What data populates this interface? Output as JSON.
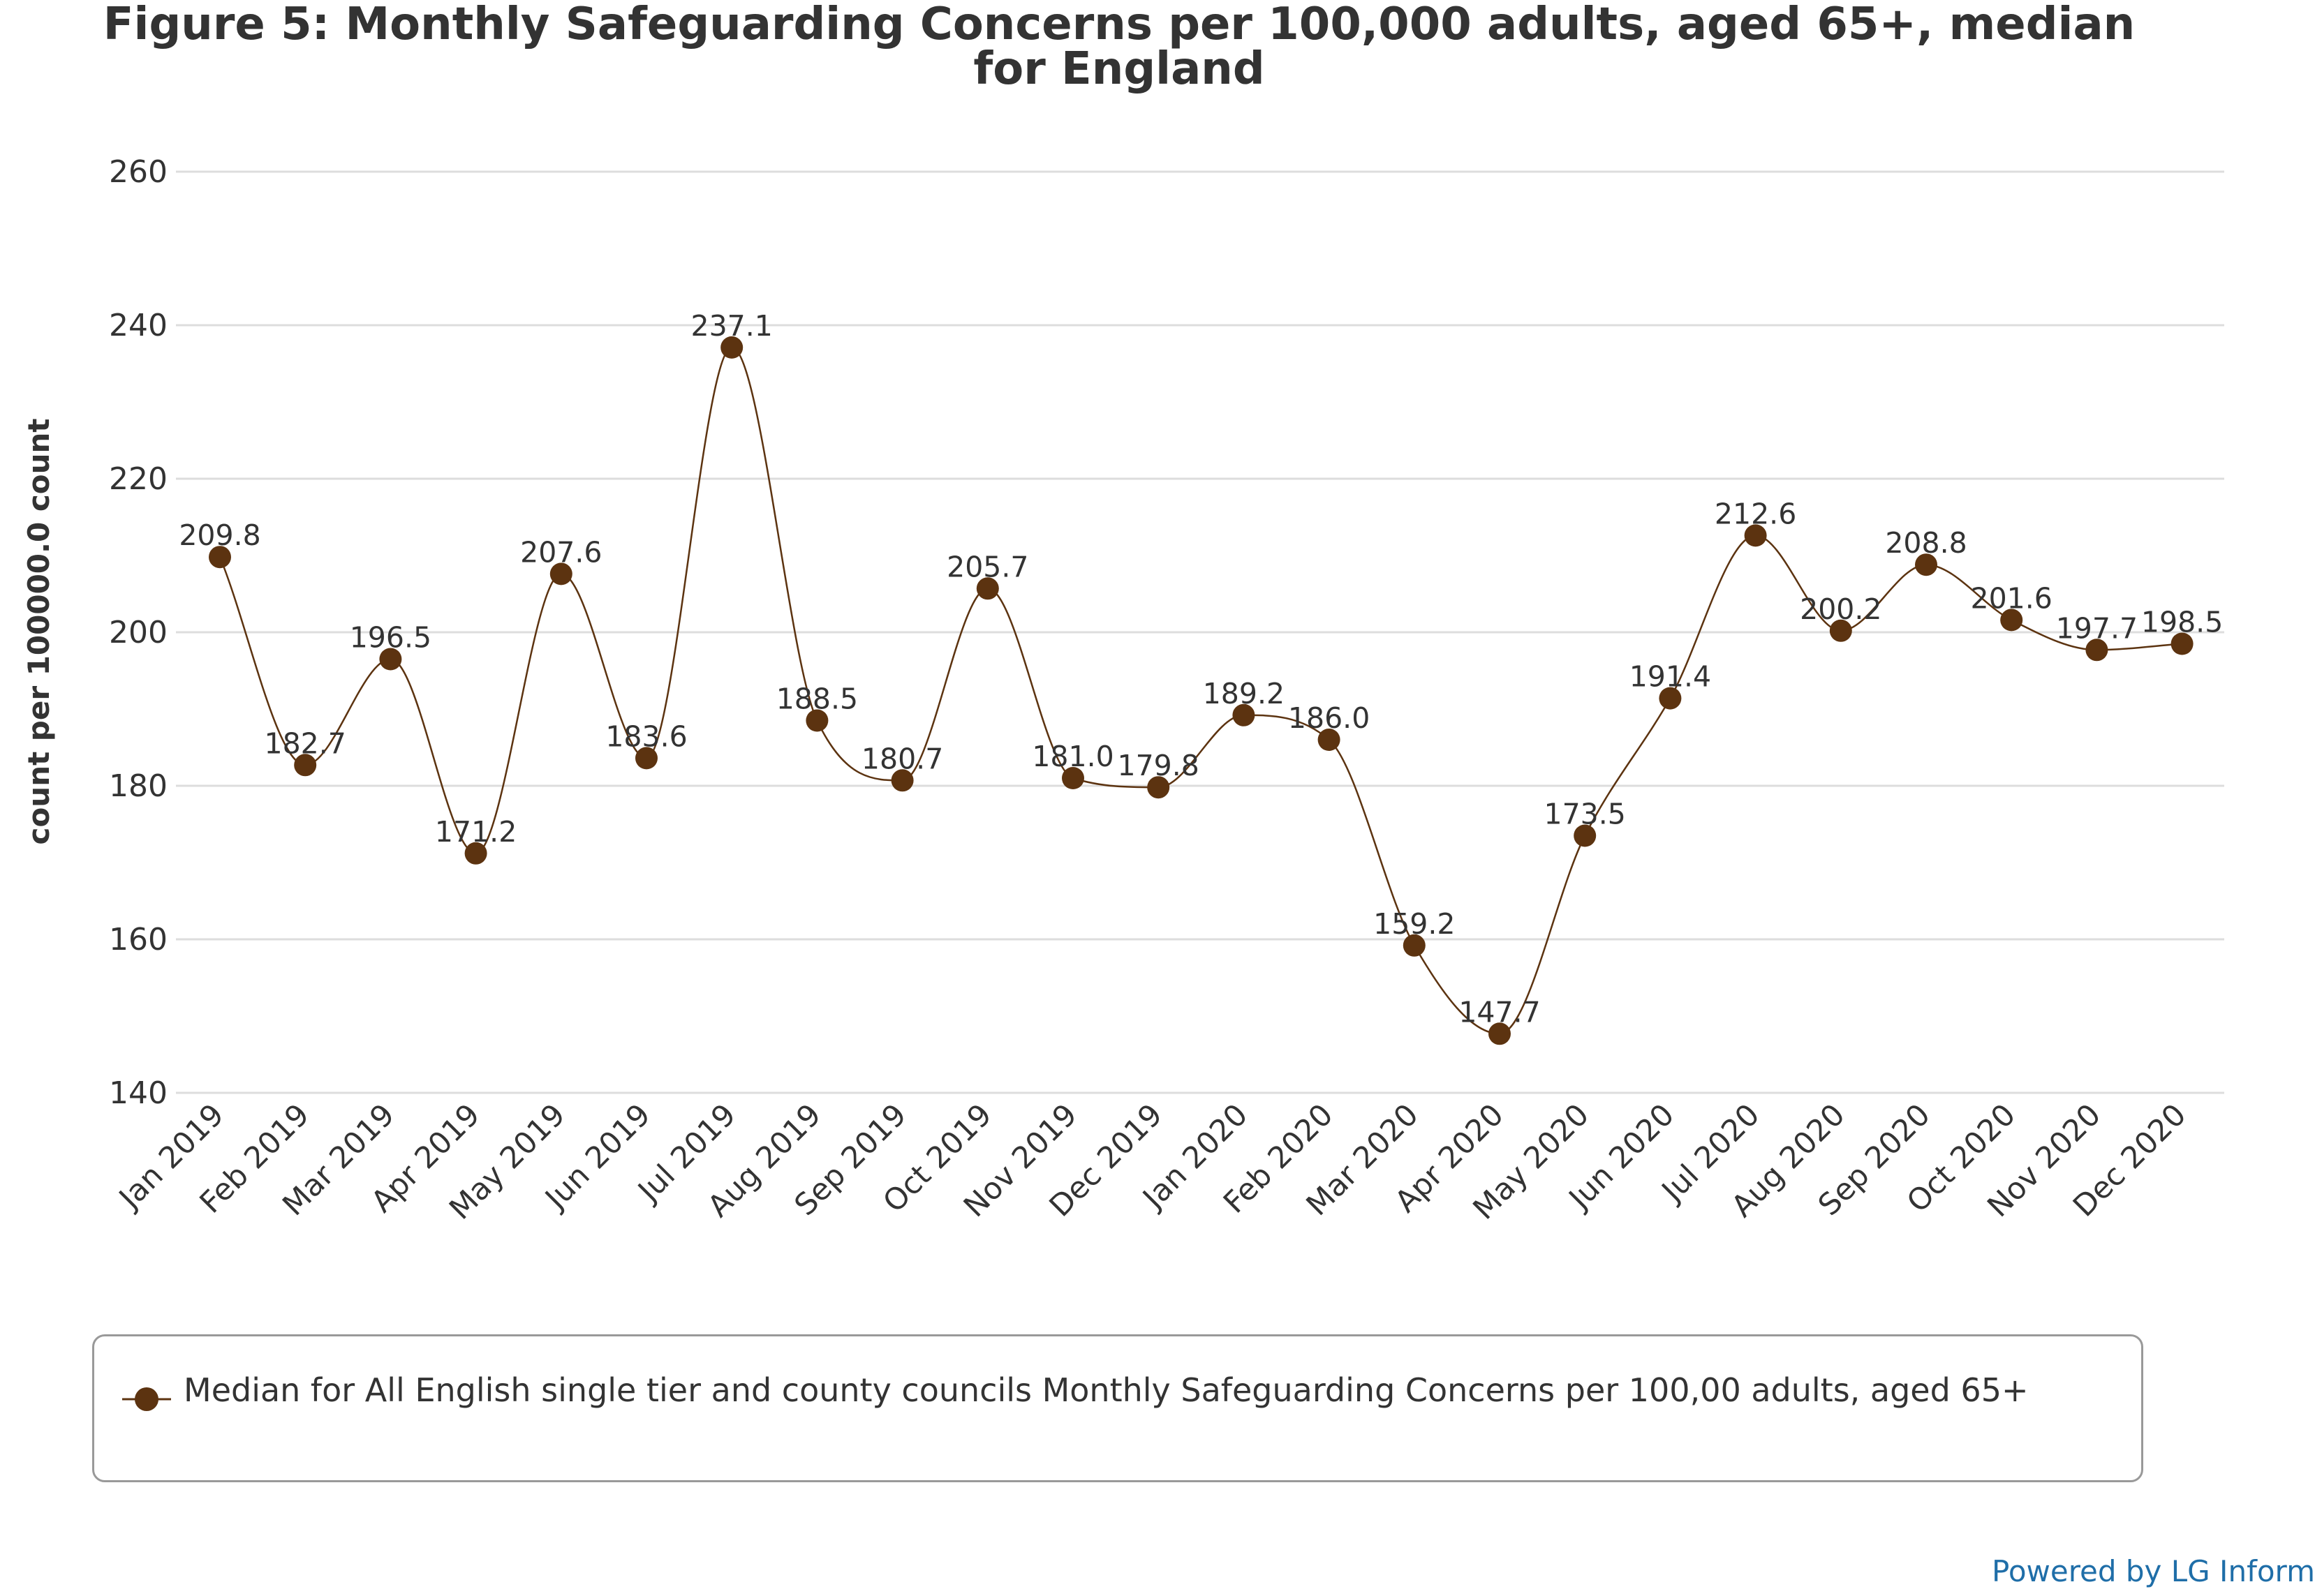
{
  "chart_data": {
    "type": "line",
    "title_line1": "Figure 5: Monthly Safeguarding Concerns per 100,000 adults, aged 65+, median",
    "title_line2": "for England",
    "ylabel": "count per 100000.0 count",
    "xlabel": "",
    "ylim": [
      140,
      260
    ],
    "yticks": [
      140,
      160,
      180,
      200,
      220,
      240,
      260
    ],
    "grid": true,
    "legend_position": "bottom",
    "categories": [
      "Jan 2019",
      "Feb 2019",
      "Mar 2019",
      "Apr 2019",
      "May 2019",
      "Jun 2019",
      "Jul 2019",
      "Aug 2019",
      "Sep 2019",
      "Oct 2019",
      "Nov 2019",
      "Dec 2019",
      "Jan 2020",
      "Feb 2020",
      "Mar 2020",
      "Apr 2020",
      "May 2020",
      "Jun 2020",
      "Jul 2020",
      "Aug 2020",
      "Sep 2020",
      "Oct 2020",
      "Nov 2020",
      "Dec 2020"
    ],
    "series": [
      {
        "name": "Median for All English single tier and county councils Monthly Safeguarding Concerns per 100,00 adults, aged 65+",
        "color": "#5c3310",
        "values": [
          209.8,
          182.7,
          196.5,
          171.2,
          207.6,
          183.6,
          237.1,
          188.5,
          180.7,
          205.7,
          181.0,
          179.8,
          189.2,
          186.0,
          159.2,
          147.7,
          173.5,
          191.4,
          212.6,
          200.2,
          208.8,
          201.6,
          197.7,
          198.5
        ],
        "labels": [
          "209.8",
          "182.7",
          "196.5",
          "171.2",
          "207.6",
          "183.6",
          "237.1",
          "188.5",
          "180.7",
          "205.7",
          "181.0",
          "179.8",
          "189.2",
          "186.0",
          "159.2",
          "147.7",
          "173.5",
          "191.4",
          "212.6",
          "200.2",
          "208.8",
          "201.6",
          "197.7",
          "198.5"
        ]
      }
    ]
  },
  "legend": {
    "text": "Median for All English single tier and county councils Monthly Safeguarding Concerns per 100,00 adults, aged 65+"
  },
  "footer": {
    "credit": "Powered by LG Inform"
  },
  "colors": {
    "series": "#5c3310",
    "grid": "#dddddd",
    "text": "#333333",
    "credit": "#1f6ea8"
  }
}
